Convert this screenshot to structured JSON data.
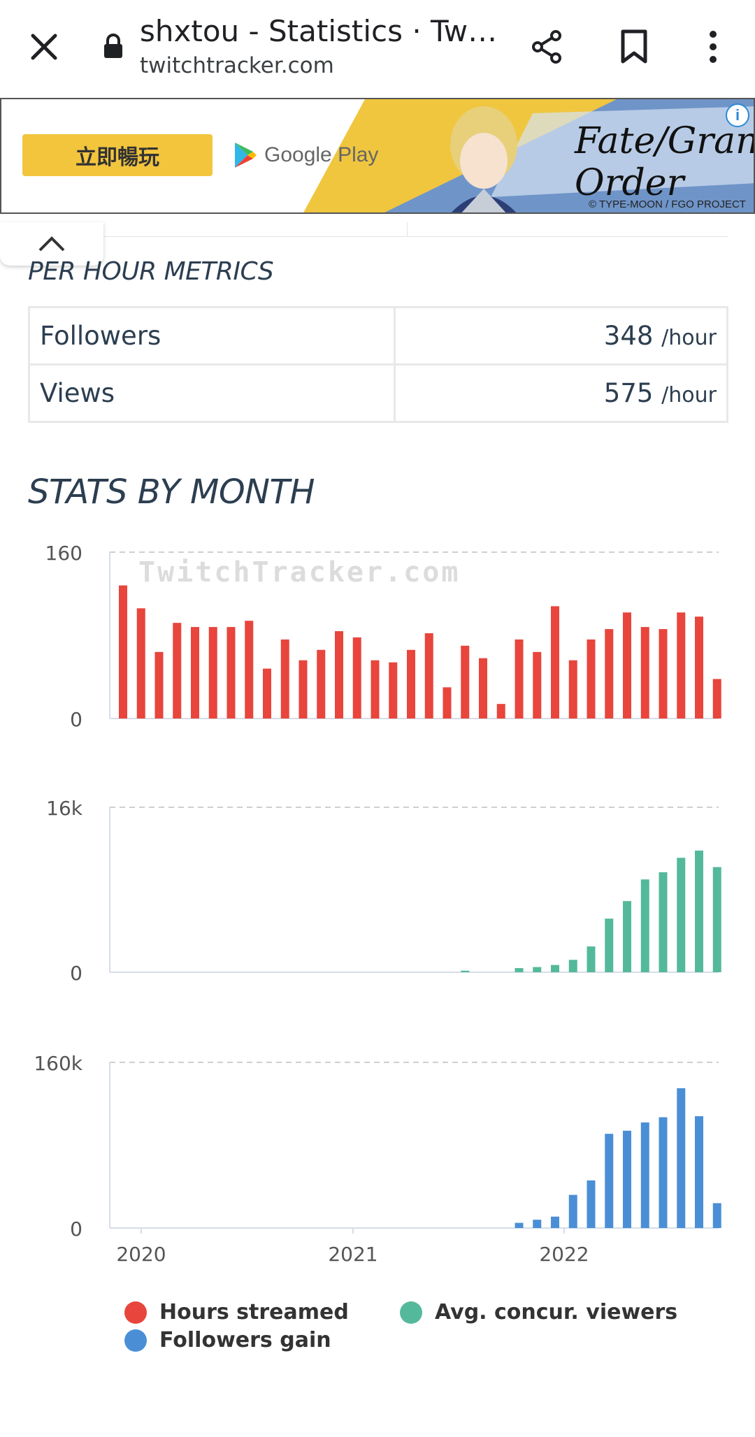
{
  "browser": {
    "page_title": "shxtou - Statistics · Twitc…",
    "url": "twitchtracker.com"
  },
  "ad": {
    "play_button_label": "立即暢玩",
    "store_label": "Google Play",
    "brand_text": "Fate/Grand Order",
    "copyright": "© TYPE-MOON / FGO PROJECT",
    "info_icon": "i"
  },
  "per_hour": {
    "title": "PER HOUR METRICS",
    "rows": [
      {
        "label": "Followers",
        "value": "348",
        "unit": "/hour"
      },
      {
        "label": "Views",
        "value": "575",
        "unit": "/hour"
      }
    ]
  },
  "stats_by_month": {
    "title": "STATS BY MONTH",
    "watermark": "TwitchTracker.com"
  },
  "chart_data": [
    {
      "type": "bar",
      "series": [
        {
          "name": "Hours streamed",
          "color": "#e8453c",
          "values": [
            128,
            106,
            64,
            92,
            88,
            88,
            88,
            94,
            48,
            76,
            56,
            66,
            84,
            78,
            56,
            54,
            66,
            82,
            30,
            70,
            58,
            14,
            76,
            64,
            108,
            56,
            76,
            86,
            102,
            88,
            86,
            102,
            98,
            38
          ]
        }
      ],
      "ylim": [
        0,
        160
      ],
      "y_ticks": [
        "0",
        "160"
      ]
    },
    {
      "type": "bar",
      "series": [
        {
          "name": "Avg. concur. viewers",
          "color": "#54b99a",
          "values": [
            0,
            0,
            0,
            0,
            0,
            0,
            0,
            0,
            0,
            0,
            0,
            0,
            0,
            0,
            0,
            0,
            0,
            0,
            0,
            150,
            0,
            0,
            400,
            500,
            700,
            1200,
            2500,
            5200,
            6900,
            9000,
            9700,
            11100,
            11800,
            10200
          ]
        }
      ],
      "ylim": [
        0,
        16000
      ],
      "y_ticks": [
        "0",
        "16k"
      ]
    },
    {
      "type": "bar",
      "series": [
        {
          "name": "Followers gain",
          "color": "#4a8fd6",
          "values": [
            0,
            0,
            0,
            0,
            0,
            0,
            0,
            0,
            0,
            0,
            0,
            0,
            0,
            0,
            0,
            0,
            0,
            0,
            0,
            0,
            0,
            0,
            5000,
            8000,
            11000,
            32000,
            46000,
            91000,
            94000,
            102000,
            107000,
            135000,
            108000,
            24000
          ]
        }
      ],
      "ylim": [
        0,
        160000
      ],
      "y_ticks": [
        "0",
        "160k"
      ],
      "x_ticks": [
        "2020",
        "2021",
        "2022"
      ]
    }
  ],
  "legend": [
    {
      "label": "Hours streamed",
      "color": "#e8453c"
    },
    {
      "label": "Avg. concur. viewers",
      "color": "#54b99a"
    },
    {
      "label": "Followers gain",
      "color": "#4a8fd6"
    }
  ]
}
